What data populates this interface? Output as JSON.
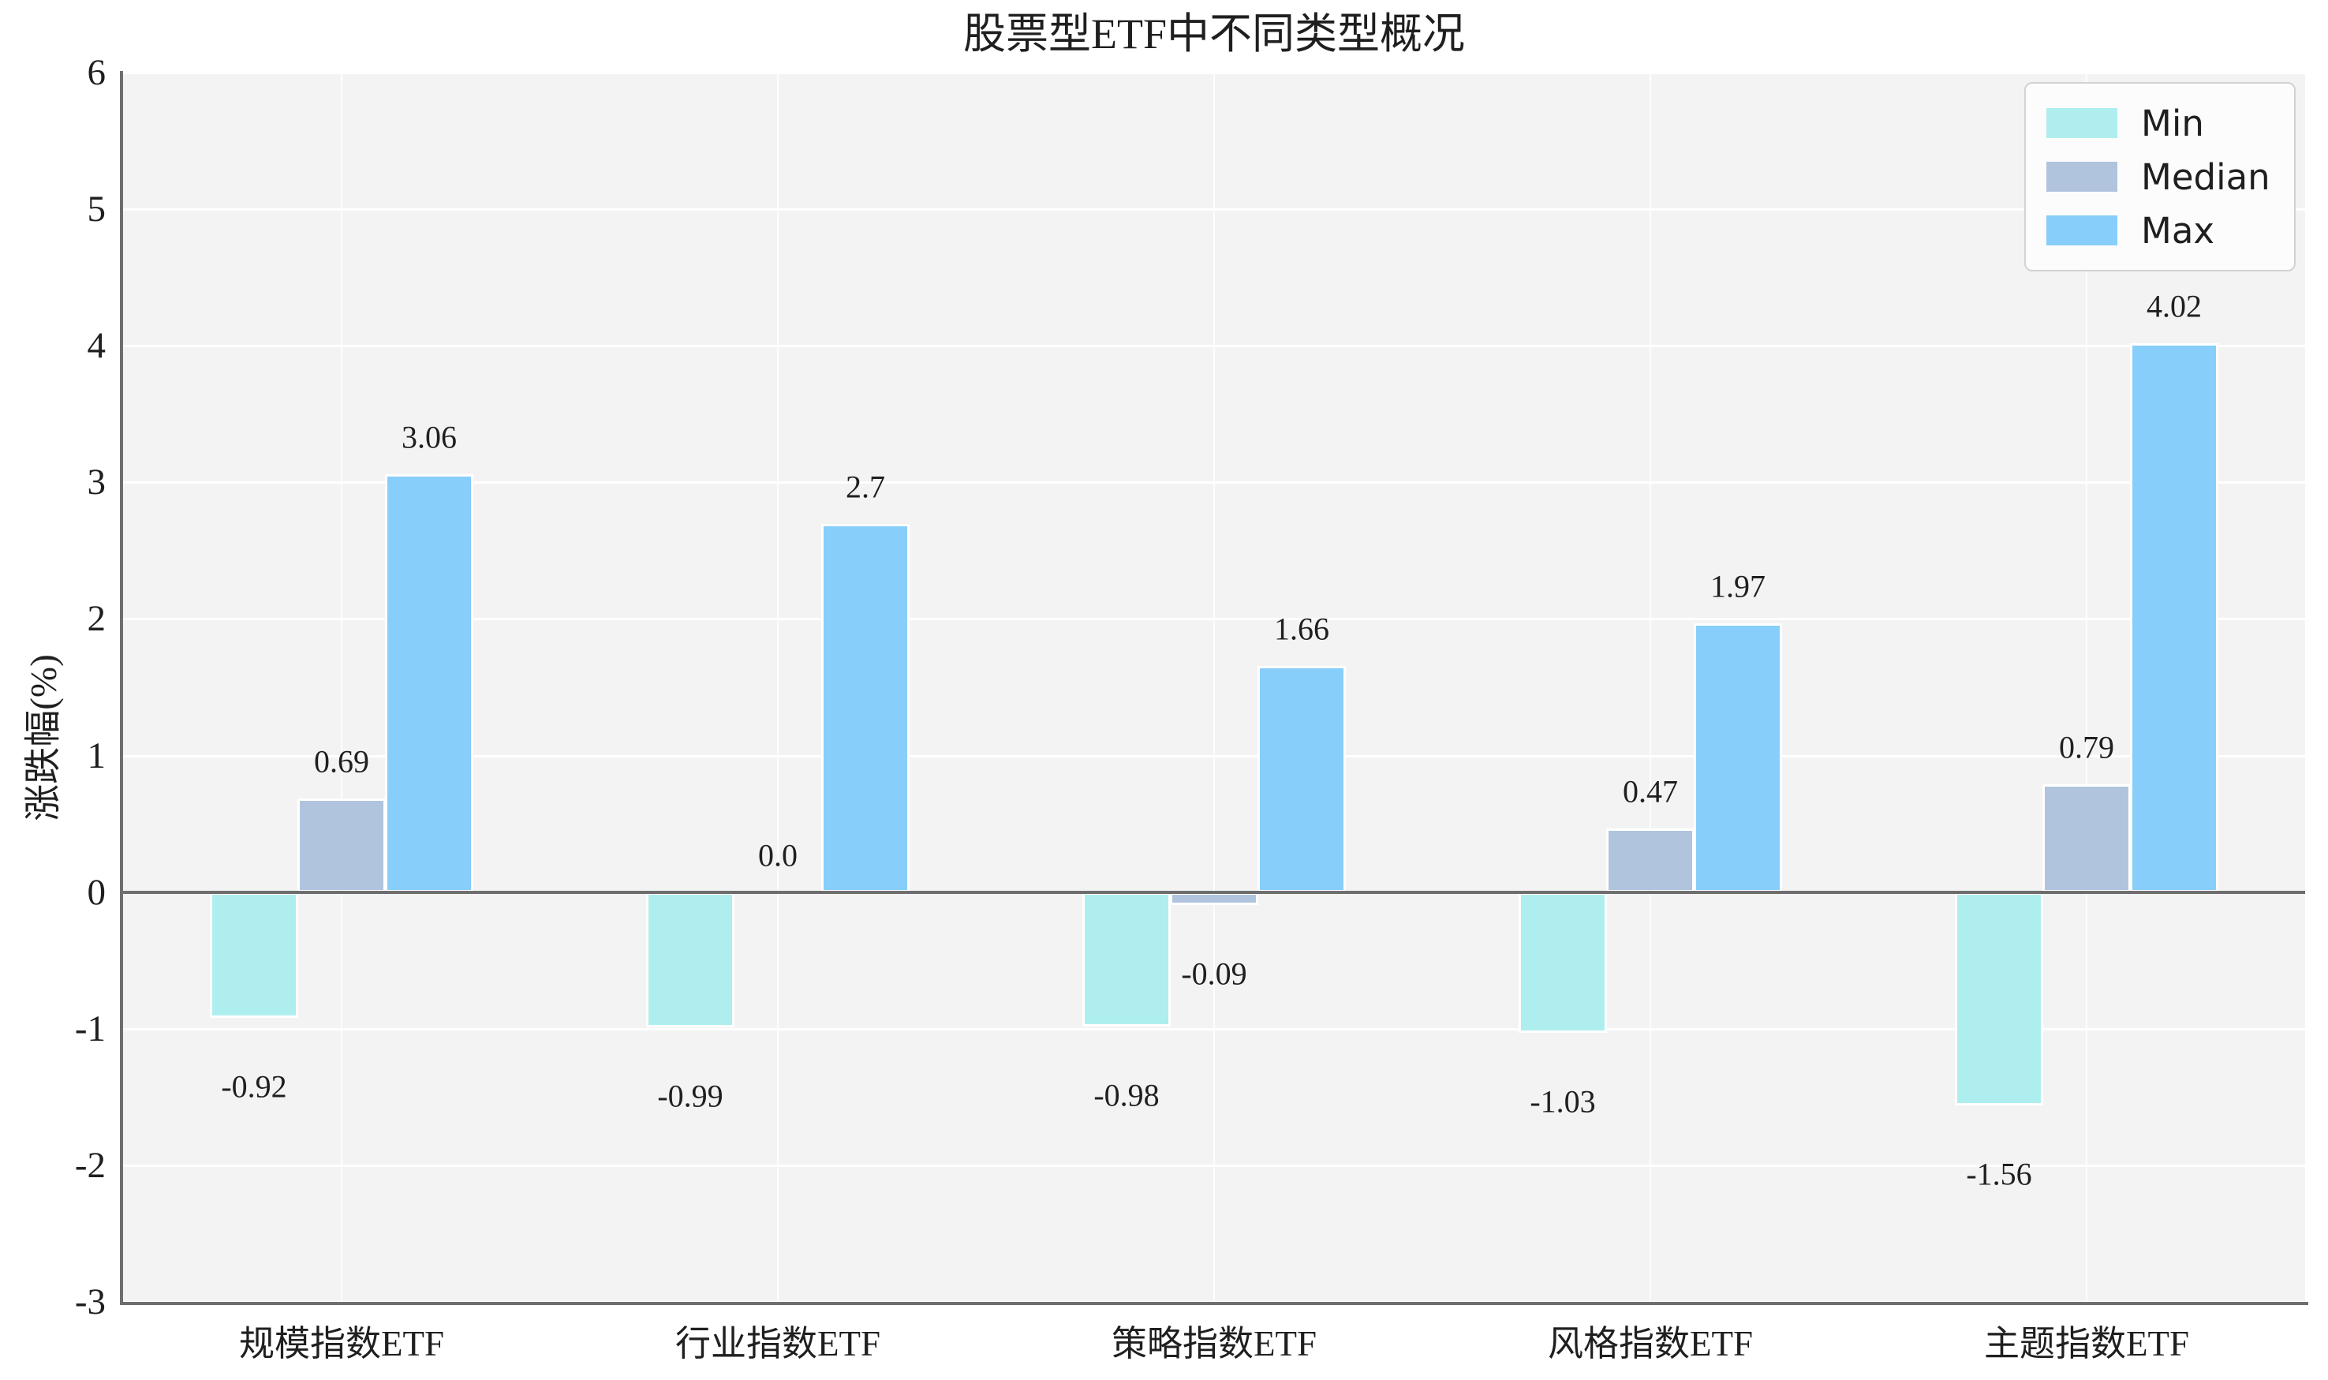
{
  "title": "股票型ETF中不同类型概况",
  "chart_data": {
    "type": "bar",
    "title": "股票型ETF中不同类型概况",
    "xlabel": "",
    "ylabel": "涨跌幅(%)",
    "categories": [
      "规模指数ETF",
      "行业指数ETF",
      "策略指数ETF",
      "风格指数ETF",
      "主题指数ETF"
    ],
    "series": [
      {
        "name": "Min",
        "color": "#AFEEEE",
        "values": [
          -0.92,
          -0.99,
          -0.98,
          -1.03,
          -1.56
        ],
        "labels": [
          "-0.92",
          "-0.99",
          "-0.98",
          "-1.03",
          "-1.56"
        ]
      },
      {
        "name": "Median",
        "color": "#B0C4DE",
        "values": [
          0.69,
          0.0,
          -0.09,
          0.47,
          0.79
        ],
        "labels": [
          "0.69",
          "0.0",
          "-0.09",
          "0.47",
          "0.79"
        ]
      },
      {
        "name": "Max",
        "color": "#87CEFA",
        "values": [
          3.06,
          2.7,
          1.66,
          1.97,
          4.02
        ],
        "labels": [
          "3.06",
          "2.7",
          "1.66",
          "1.97",
          "4.02"
        ]
      }
    ],
    "ylim": [
      -3,
      6
    ],
    "yticks": [
      6,
      5,
      4,
      3,
      2,
      1,
      0,
      -1,
      -2,
      -3
    ],
    "grid": true,
    "legend_position": "upper right",
    "colors": {
      "plot_background": "#f3f3f4",
      "gridline": "#ffffff",
      "axis_spine": "#6e6e6e",
      "text": "#1f1f1f",
      "legend_background": "#fcfcfc",
      "legend_border": "#d2d2d2"
    }
  }
}
